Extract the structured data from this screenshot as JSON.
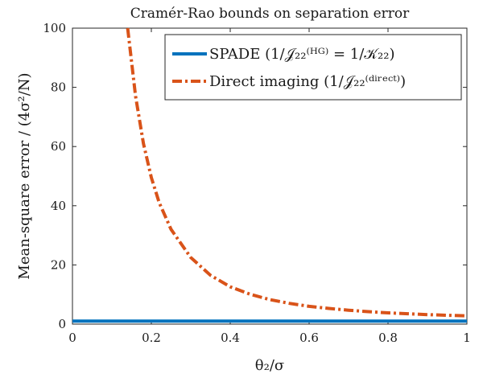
{
  "chart_data": {
    "type": "line",
    "title": "Cramér-Rao bounds on separation error",
    "xlabel": "θ₂/σ",
    "ylabel": "Mean-square error  / (4σ²/N)",
    "xlim": [
      0,
      1
    ],
    "ylim": [
      0,
      100
    ],
    "xticks": [
      0,
      0.2,
      0.4,
      0.6,
      0.8,
      1
    ],
    "xtick_labels": [
      "0",
      "0.2",
      "0.4",
      "0.6",
      "0.8",
      "1"
    ],
    "yticks": [
      0,
      20,
      40,
      60,
      80,
      100
    ],
    "ytick_labels": [
      "0",
      "20",
      "40",
      "60",
      "80",
      "100"
    ],
    "grid": false,
    "legend_position": "top-right",
    "series": [
      {
        "name": "SPADE (1/𝒥₂₂⁽ᴴᴳ⁾ = 1/𝒦₂₂)",
        "style": "solid",
        "color": "#0072bd",
        "x": [
          0,
          1
        ],
        "y": [
          1,
          1
        ]
      },
      {
        "name": "Direct imaging (1/𝒥₂₂⁽ᵈⁱʳᵉᶜᵗ⁾)",
        "style": "dash-dot",
        "color": "#d95319",
        "x": [
          0.14,
          0.16,
          0.18,
          0.2,
          0.22,
          0.25,
          0.3,
          0.35,
          0.4,
          0.45,
          0.5,
          0.55,
          0.6,
          0.65,
          0.7,
          0.75,
          0.8,
          0.85,
          0.9,
          0.95,
          1.0
        ],
        "y": [
          100,
          77,
          61,
          49.5,
          41,
          32,
          22.5,
          16.5,
          12.6,
          10.1,
          8.3,
          7.0,
          6.0,
          5.3,
          4.7,
          4.2,
          3.8,
          3.5,
          3.2,
          3.0,
          2.8
        ]
      }
    ]
  }
}
